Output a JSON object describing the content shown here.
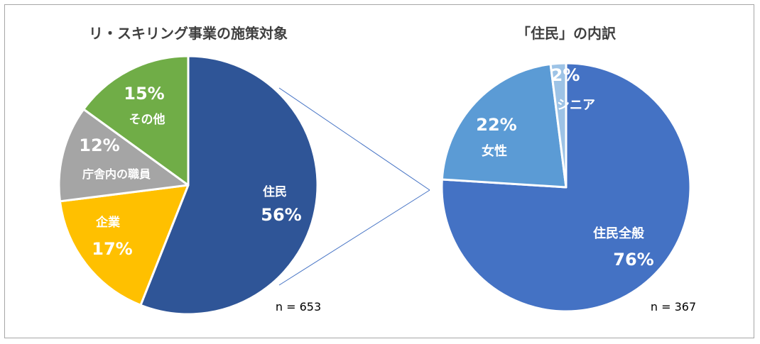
{
  "chart_data": [
    {
      "type": "pie",
      "title": "リ・スキリング事業の施策対象",
      "n_label": "n = 653",
      "slices": [
        {
          "label": "住民",
          "value": 56,
          "value_label": "56%",
          "color": "#2f5597"
        },
        {
          "label": "企業",
          "value": 17,
          "value_label": "17%",
          "color": "#ffc000"
        },
        {
          "label": "庁舎内の職員",
          "value": 12,
          "value_label": "12%",
          "color": "#a5a5a5"
        },
        {
          "label": "その他",
          "value": 15,
          "value_label": "15%",
          "color": "#70ad47"
        }
      ]
    },
    {
      "type": "pie",
      "title": "「住民」の内訳",
      "n_label": "n = 367",
      "slices": [
        {
          "label": "住民全般",
          "value": 76,
          "value_label": "76%",
          "color": "#4472c4"
        },
        {
          "label": "女性",
          "value": 22,
          "value_label": "22%",
          "color": "#5b9bd5"
        },
        {
          "label": "シニア",
          "value": 2,
          "value_label": "2%",
          "color": "#9dc3e6"
        }
      ]
    }
  ],
  "connector_color": "#4472c4"
}
